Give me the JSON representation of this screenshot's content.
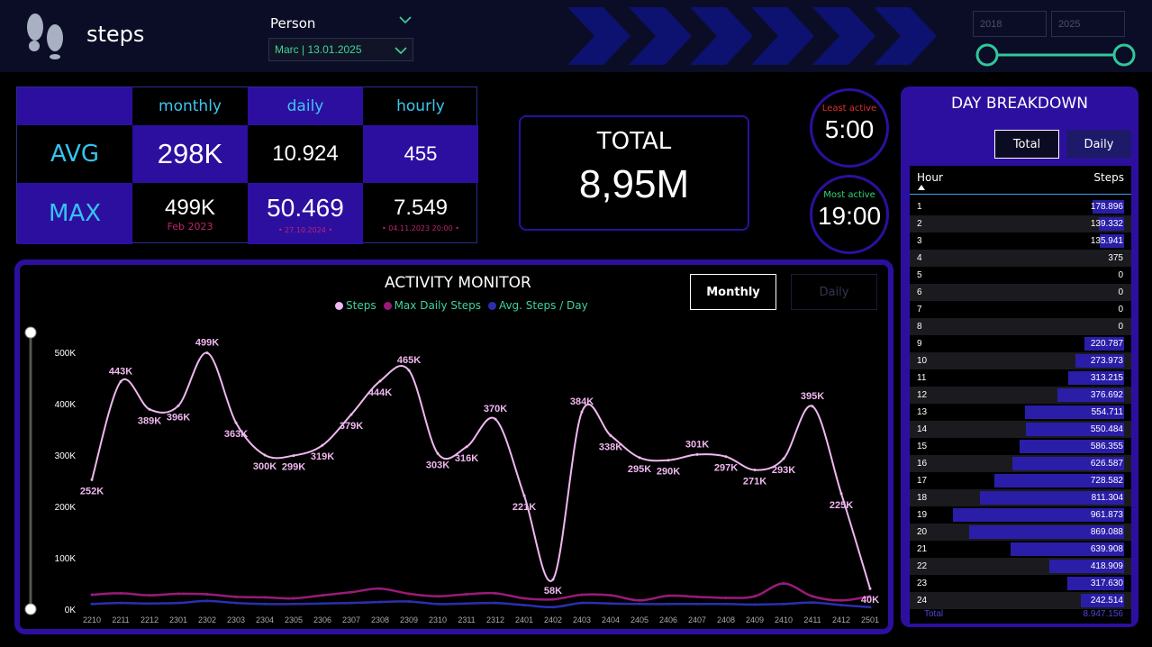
{
  "header": {
    "title": "steps",
    "person_label": "Person",
    "person_value": "Marc | 13.01.2025",
    "year_from": "2018",
    "year_to": "2025"
  },
  "matrix": {
    "col_monthly": "monthly",
    "col_daily": "daily",
    "col_hourly": "hourly",
    "row_avg": "AVG",
    "row_max": "MAX",
    "avg_monthly": "298K",
    "avg_daily": "10.924",
    "avg_hourly": "455",
    "max_monthly": "499K",
    "max_monthly_date": "Feb 2023",
    "max_daily": "50.469",
    "max_daily_date": "• 27.10.2024 •",
    "max_hourly": "7.549",
    "max_hourly_date": "• 04.11.2023 20:00 •"
  },
  "total": {
    "label": "TOTAL",
    "value": "8,95M"
  },
  "least_active": {
    "label": "Least active",
    "value": "5:00",
    "color": "#e0302a"
  },
  "most_active": {
    "label": "Most active",
    "value": "19:00",
    "color": "#2fd67a"
  },
  "activity": {
    "title": "ACTIVITY MONITOR",
    "btn_monthly": "Monthly",
    "btn_daily": "Daily",
    "legend": [
      "Steps",
      "Max Daily Steps",
      "Avg. Steps / Day"
    ]
  },
  "chart_data": {
    "type": "line",
    "title": "ACTIVITY MONITOR",
    "x": [
      "2210",
      "2211",
      "2212",
      "2301",
      "2302",
      "2303",
      "2304",
      "2305",
      "2306",
      "2307",
      "2308",
      "2309",
      "2310",
      "2311",
      "2312",
      "2401",
      "2402",
      "2403",
      "2404",
      "2405",
      "2406",
      "2407",
      "2408",
      "2409",
      "2410",
      "2411",
      "2412",
      "2501"
    ],
    "yticks": [
      "0K",
      "100K",
      "200K",
      "300K",
      "400K",
      "500K"
    ],
    "ylim": [
      0,
      500000
    ],
    "series": [
      {
        "name": "Steps",
        "color": "#f0b8f0",
        "values": [
          252000,
          443000,
          389000,
          396000,
          499000,
          363000,
          300000,
          299000,
          319000,
          379000,
          444000,
          465000,
          303000,
          316000,
          370000,
          221000,
          58000,
          384000,
          338000,
          295000,
          290000,
          301000,
          297000,
          271000,
          293000,
          395000,
          225000,
          40000
        ],
        "labels": [
          "252K",
          "443K",
          "389K",
          "396K",
          "499K",
          "363K",
          "300K",
          "299K",
          "319K",
          "379K",
          "444K",
          "465K",
          "303K",
          "316K",
          "370K",
          "221K",
          "58K",
          "384K",
          "338K",
          "295K",
          "290K",
          "301K",
          "297K",
          "271K",
          "293K",
          "395K",
          "225K",
          "40K"
        ]
      },
      {
        "name": "Max Daily Steps",
        "color": "#9a1a7a",
        "values": [
          28000,
          31000,
          27000,
          30000,
          29000,
          24000,
          23000,
          21000,
          27000,
          33000,
          40000,
          30000,
          25000,
          29000,
          31000,
          21000,
          19000,
          28000,
          27000,
          17000,
          26000,
          24000,
          22000,
          25000,
          50000,
          25000,
          17000,
          25000
        ]
      },
      {
        "name": "Avg. Steps / Day",
        "color": "#2a2fb0",
        "values": [
          10000,
          12000,
          11000,
          12000,
          16000,
          12000,
          10000,
          10000,
          11000,
          12000,
          14000,
          15000,
          10000,
          11000,
          12000,
          8000,
          4000,
          12000,
          11000,
          10000,
          10000,
          10000,
          10000,
          9000,
          10000,
          13000,
          8000,
          4000
        ]
      }
    ]
  },
  "breakdown": {
    "title": "DAY BREAKDOWN",
    "btn_total": "Total",
    "btn_daily": "Daily",
    "col_hour": "Hour",
    "col_steps": "Steps",
    "max_value": 961873,
    "rows": [
      {
        "hour": "1",
        "steps": "178.896",
        "value": 178896
      },
      {
        "hour": "2",
        "steps": "139.332",
        "value": 139332
      },
      {
        "hour": "3",
        "steps": "135.941",
        "value": 135941
      },
      {
        "hour": "4",
        "steps": "375",
        "value": 375
      },
      {
        "hour": "5",
        "steps": "0",
        "value": 0
      },
      {
        "hour": "6",
        "steps": "0",
        "value": 0
      },
      {
        "hour": "7",
        "steps": "0",
        "value": 0
      },
      {
        "hour": "8",
        "steps": "0",
        "value": 0
      },
      {
        "hour": "9",
        "steps": "220.787",
        "value": 220787
      },
      {
        "hour": "10",
        "steps": "273.973",
        "value": 273973
      },
      {
        "hour": "11",
        "steps": "313.215",
        "value": 313215
      },
      {
        "hour": "12",
        "steps": "376.692",
        "value": 376692
      },
      {
        "hour": "13",
        "steps": "554.711",
        "value": 554711
      },
      {
        "hour": "14",
        "steps": "550.484",
        "value": 550484
      },
      {
        "hour": "15",
        "steps": "586.355",
        "value": 586355
      },
      {
        "hour": "16",
        "steps": "626.587",
        "value": 626587
      },
      {
        "hour": "17",
        "steps": "728.582",
        "value": 728582
      },
      {
        "hour": "18",
        "steps": "811.304",
        "value": 811304
      },
      {
        "hour": "19",
        "steps": "961.873",
        "value": 961873
      },
      {
        "hour": "20",
        "steps": "869.088",
        "value": 869088
      },
      {
        "hour": "21",
        "steps": "639.908",
        "value": 639908
      },
      {
        "hour": "22",
        "steps": "418.909",
        "value": 418909
      },
      {
        "hour": "23",
        "steps": "317.630",
        "value": 317630
      },
      {
        "hour": "24",
        "steps": "242.514",
        "value": 242514
      }
    ],
    "total_label": "Total",
    "total_value": "8.947.156"
  }
}
